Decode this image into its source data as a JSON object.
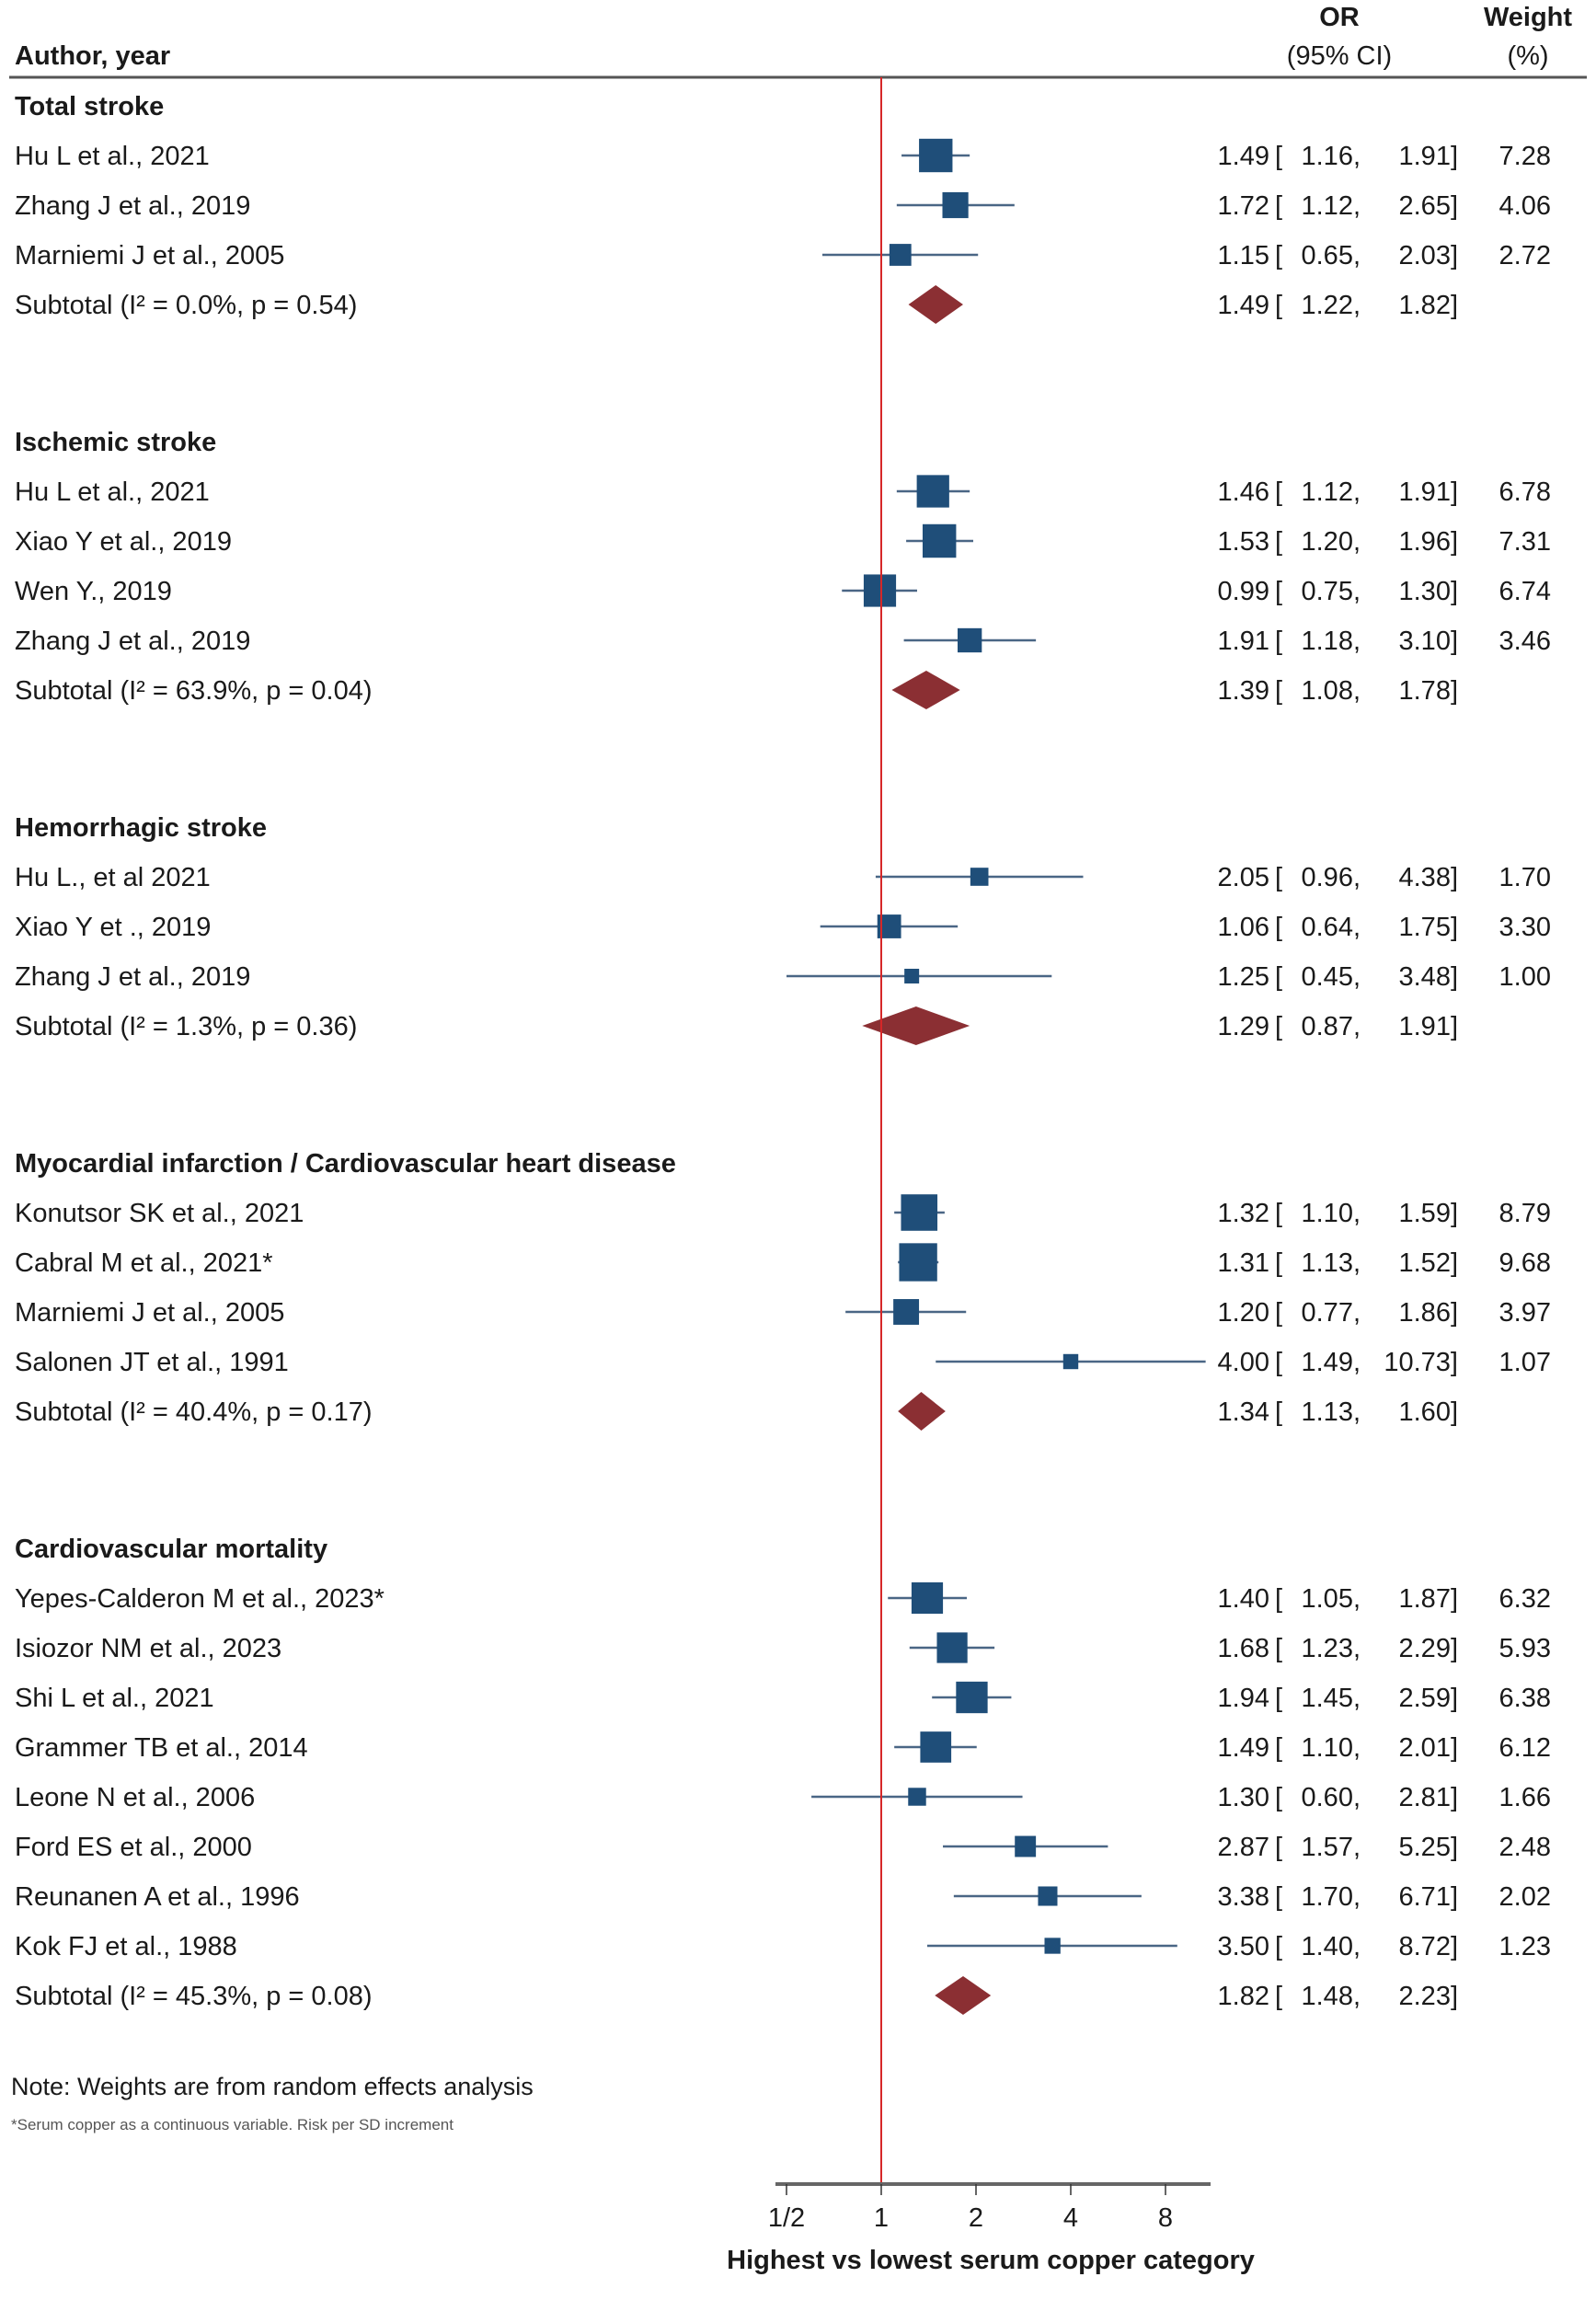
{
  "colors": {
    "square": "#1f4e79",
    "ci": "#4a6685",
    "diamond": "#8b2f33",
    "null_line": "#d62728",
    "axis": "#666666"
  },
  "header": {
    "author": "Author, year",
    "or_line1": "OR",
    "or_line2": "(95% CI)",
    "weight_line1": "Weight",
    "weight_line2": "(%)"
  },
  "chart_data": {
    "type": "forest",
    "xlabel": "Highest vs lowest serum copper category",
    "x_scale": "log2",
    "xlim": [
      0.5,
      11
    ],
    "null_value": 1,
    "ticks": [
      {
        "v": 0.5,
        "label": "1/2"
      },
      {
        "v": 1,
        "label": "1"
      },
      {
        "v": 2,
        "label": "2"
      },
      {
        "v": 4,
        "label": "4"
      },
      {
        "v": 8,
        "label": "8"
      }
    ],
    "groups": [
      {
        "name": "Total stroke",
        "studies": [
          {
            "label": "Hu L et al., 2021",
            "or": 1.49,
            "lo": 1.16,
            "hi": 1.91,
            "or_t": "1.49",
            "lo_t": "1.16",
            "hi_t": "1.91",
            "weight": "7.28"
          },
          {
            "label": "Zhang J et al., 2019",
            "or": 1.72,
            "lo": 1.12,
            "hi": 2.65,
            "or_t": "1.72",
            "lo_t": "1.12",
            "hi_t": "2.65",
            "weight": "4.06"
          },
          {
            "label": "Marniemi J et al., 2005",
            "or": 1.15,
            "lo": 0.65,
            "hi": 2.03,
            "or_t": "1.15",
            "lo_t": "0.65",
            "hi_t": "2.03",
            "weight": "2.72"
          }
        ],
        "subtotal": {
          "label": "Subtotal (I² = 0.0%, p = 0.54)",
          "or": 1.49,
          "lo": 1.22,
          "hi": 1.82,
          "or_t": "1.49",
          "lo_t": "1.22",
          "hi_t": "1.82"
        }
      },
      {
        "name": "Ischemic stroke",
        "studies": [
          {
            "label": "Hu L et al., 2021",
            "or": 1.46,
            "lo": 1.12,
            "hi": 1.91,
            "or_t": "1.46",
            "lo_t": "1.12",
            "hi_t": "1.91",
            "weight": "6.78"
          },
          {
            "label": "Xiao Y et al., 2019",
            "or": 1.53,
            "lo": 1.2,
            "hi": 1.96,
            "or_t": "1.53",
            "lo_t": "1.20",
            "hi_t": "1.96",
            "weight": "7.31"
          },
          {
            "label": "Wen Y., 2019",
            "or": 0.99,
            "lo": 0.75,
            "hi": 1.3,
            "or_t": "0.99",
            "lo_t": "0.75",
            "hi_t": "1.30",
            "weight": "6.74"
          },
          {
            "label": "Zhang J et al., 2019",
            "or": 1.91,
            "lo": 1.18,
            "hi": 3.1,
            "or_t": "1.91",
            "lo_t": "1.18",
            "hi_t": "3.10",
            "weight": "3.46"
          }
        ],
        "subtotal": {
          "label": "Subtotal (I² = 63.9%, p = 0.04)",
          "or": 1.39,
          "lo": 1.08,
          "hi": 1.78,
          "or_t": "1.39",
          "lo_t": "1.08",
          "hi_t": "1.78"
        }
      },
      {
        "name": "Hemorrhagic stroke",
        "studies": [
          {
            "label": "Hu L., et al 2021",
            "or": 2.05,
            "lo": 0.96,
            "hi": 4.38,
            "or_t": "2.05",
            "lo_t": "0.96",
            "hi_t": "4.38",
            "weight": "1.70"
          },
          {
            "label": "Xiao Y et ., 2019",
            "or": 1.06,
            "lo": 0.64,
            "hi": 1.75,
            "or_t": "1.06",
            "lo_t": "0.64",
            "hi_t": "1.75",
            "weight": "3.30"
          },
          {
            "label": "Zhang J et al., 2019",
            "or": 1.25,
            "lo": 0.45,
            "hi": 3.48,
            "or_t": "1.25",
            "lo_t": "0.45",
            "hi_t": "3.48",
            "weight": "1.00"
          }
        ],
        "subtotal": {
          "label": "Subtotal (I² = 1.3%, p = 0.36)",
          "or": 1.29,
          "lo": 0.87,
          "hi": 1.91,
          "or_t": "1.29",
          "lo_t": "0.87",
          "hi_t": "1.91"
        }
      },
      {
        "name": "Myocardial infarction / Cardiovascular heart disease",
        "studies": [
          {
            "label": "Konutsor SK et al., 2021",
            "or": 1.32,
            "lo": 1.1,
            "hi": 1.59,
            "or_t": "1.32",
            "lo_t": "1.10",
            "hi_t": "1.59",
            "weight": "8.79"
          },
          {
            "label": "Cabral M et al., 2021*",
            "or": 1.31,
            "lo": 1.13,
            "hi": 1.52,
            "or_t": "1.31",
            "lo_t": "1.13",
            "hi_t": "1.52",
            "weight": "9.68"
          },
          {
            "label": "Marniemi J et al., 2005",
            "or": 1.2,
            "lo": 0.77,
            "hi": 1.86,
            "or_t": "1.20",
            "lo_t": "0.77",
            "hi_t": "1.86",
            "weight": "3.97"
          },
          {
            "label": "Salonen JT et al., 1991",
            "or": 4.0,
            "lo": 1.49,
            "hi": 10.73,
            "or_t": "4.00",
            "lo_t": "1.49",
            "hi_t": "10.73",
            "weight": "1.07"
          }
        ],
        "subtotal": {
          "label": "Subtotal (I² = 40.4%, p = 0.17)",
          "or": 1.34,
          "lo": 1.13,
          "hi": 1.6,
          "or_t": "1.34",
          "lo_t": "1.13",
          "hi_t": "1.60"
        }
      },
      {
        "name": "Cardiovascular mortality",
        "studies": [
          {
            "label": "Yepes-Calderon M et al., 2023*",
            "or": 1.4,
            "lo": 1.05,
            "hi": 1.87,
            "or_t": "1.40",
            "lo_t": "1.05",
            "hi_t": "1.87",
            "weight": "6.32"
          },
          {
            "label": "Isiozor NM et al., 2023",
            "or": 1.68,
            "lo": 1.23,
            "hi": 2.29,
            "or_t": "1.68",
            "lo_t": "1.23",
            "hi_t": "2.29",
            "weight": "5.93"
          },
          {
            "label": "Shi L et al., 2021",
            "or": 1.94,
            "lo": 1.45,
            "hi": 2.59,
            "or_t": "1.94",
            "lo_t": "1.45",
            "hi_t": "2.59",
            "weight": "6.38"
          },
          {
            "label": "Grammer TB et al., 2014",
            "or": 1.49,
            "lo": 1.1,
            "hi": 2.01,
            "or_t": "1.49",
            "lo_t": "1.10",
            "hi_t": "2.01",
            "weight": "6.12"
          },
          {
            "label": "Leone N et al., 2006",
            "or": 1.3,
            "lo": 0.6,
            "hi": 2.81,
            "or_t": "1.30",
            "lo_t": "0.60",
            "hi_t": "2.81",
            "weight": "1.66"
          },
          {
            "label": "Ford ES et al., 2000",
            "or": 2.87,
            "lo": 1.57,
            "hi": 5.25,
            "or_t": "2.87",
            "lo_t": "1.57",
            "hi_t": "5.25",
            "weight": "2.48"
          },
          {
            "label": "Reunanen A et al., 1996",
            "or": 3.38,
            "lo": 1.7,
            "hi": 6.71,
            "or_t": "3.38",
            "lo_t": "1.70",
            "hi_t": "6.71",
            "weight": "2.02"
          },
          {
            "label": "Kok FJ et al., 1988",
            "or": 3.5,
            "lo": 1.4,
            "hi": 8.72,
            "or_t": "3.50",
            "lo_t": "1.40",
            "hi_t": "8.72",
            "weight": "1.23"
          }
        ],
        "subtotal": {
          "label": "Subtotal (I² = 45.3%, p = 0.08)",
          "or": 1.82,
          "lo": 1.48,
          "hi": 2.23,
          "or_t": "1.82",
          "lo_t": "1.48",
          "hi_t": "2.23"
        }
      }
    ]
  },
  "notes": {
    "note": "Note: Weights are from random effects analysis",
    "footnote": "*Serum copper as a continuous variable. Risk per SD increment"
  }
}
